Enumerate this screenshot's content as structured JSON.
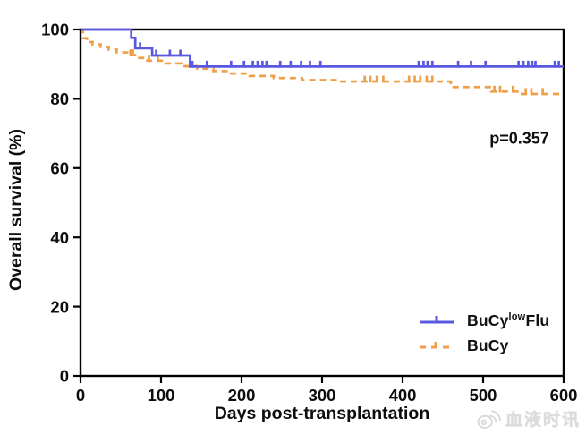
{
  "watermark": {
    "icon": "weibo-icon",
    "text": "血液时讯"
  },
  "chart_data": {
    "type": "line",
    "subtype": "kaplan-meier-step",
    "title": "",
    "xlabel": "Days post-transplantation",
    "ylabel": "Overall survival (%)",
    "xlim": [
      0,
      600
    ],
    "ylim": [
      0,
      100
    ],
    "xticks": [
      0,
      100,
      200,
      300,
      400,
      500,
      600
    ],
    "yticks": [
      0,
      20,
      40,
      60,
      80,
      100
    ],
    "grid": false,
    "frame": true,
    "legend_position": "lower-right",
    "annotation": {
      "text": "p=0.357",
      "x_day": 545,
      "y_pct": 67
    },
    "axis_color": "#000000",
    "series": [
      {
        "name": "BuCylowFlu",
        "label_parts": {
          "pre": "BuCy",
          "sup": "low",
          "post": "Flu"
        },
        "color": "#5a58e0",
        "style": "solid",
        "steps": [
          [
            0,
            100
          ],
          [
            63,
            97.6
          ],
          [
            68,
            94.6
          ],
          [
            89,
            92.5
          ],
          [
            136,
            89.3
          ]
        ],
        "final_value": 89.3,
        "censor_days": [
          74,
          94,
          111,
          124,
          139,
          157,
          187,
          203,
          214,
          220,
          226,
          231,
          248,
          261,
          274,
          285,
          298,
          420,
          426,
          431,
          437,
          469,
          485,
          503,
          544,
          550,
          556,
          561,
          565,
          589,
          594
        ]
      },
      {
        "name": "BuCy",
        "label_parts": {
          "pre": "BuCy",
          "sup": "",
          "post": ""
        },
        "color": "#f09f48",
        "style": "dashed",
        "steps": [
          [
            0,
            100
          ],
          [
            3,
            97.5
          ],
          [
            8,
            96.4
          ],
          [
            15,
            95.7
          ],
          [
            25,
            95
          ],
          [
            35,
            94.2
          ],
          [
            45,
            93.4
          ],
          [
            58,
            92.6
          ],
          [
            70,
            91.8
          ],
          [
            83,
            91
          ],
          [
            105,
            90.2
          ],
          [
            125,
            89.4
          ],
          [
            145,
            88.7
          ],
          [
            165,
            88
          ],
          [
            185,
            87.3
          ],
          [
            210,
            86.6
          ],
          [
            240,
            86
          ],
          [
            275,
            85.4
          ],
          [
            320,
            85
          ],
          [
            460,
            83.4
          ],
          [
            510,
            82.1
          ],
          [
            545,
            81.4
          ]
        ],
        "final_value": 81.4,
        "censor_days": [
          62,
          65,
          85,
          96,
          353,
          360,
          368,
          376,
          408,
          415,
          422,
          430,
          437,
          514,
          521,
          537,
          553,
          560,
          574
        ]
      }
    ]
  }
}
